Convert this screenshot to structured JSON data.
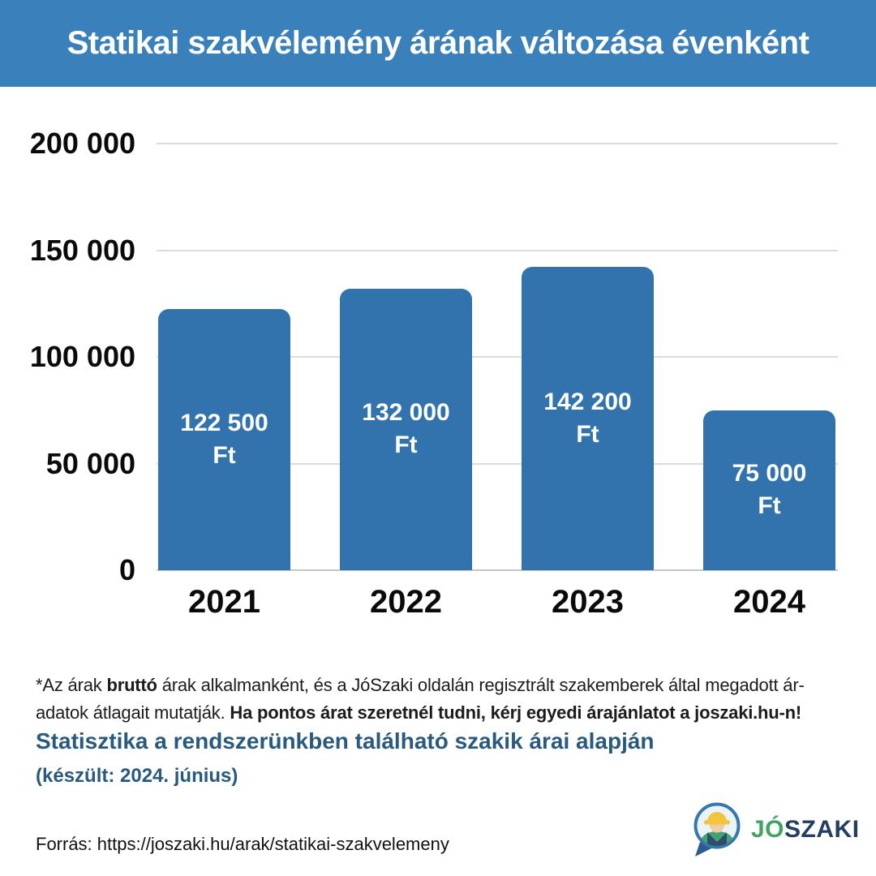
{
  "header": {
    "title": "Statikai szakvélemény árának változása évenként",
    "bg_color": "#3a80bb",
    "text_color": "#ffffff"
  },
  "chart_data": {
    "type": "bar",
    "title": "Statikai szakvélemény árának változása évenként",
    "categories": [
      "2021",
      "2022",
      "2023",
      "2024"
    ],
    "values": [
      122500,
      132000,
      142200,
      75000
    ],
    "value_labels": [
      "122 500",
      "132 000",
      "142 200",
      "75 000"
    ],
    "unit": "Ft",
    "xlabel": "",
    "ylabel": "",
    "ylim": [
      0,
      200000
    ],
    "y_ticks": [
      200000,
      150000,
      100000,
      50000,
      0
    ],
    "y_tick_labels": [
      "200 000",
      "150 000",
      "100 000",
      "50 000",
      "0"
    ],
    "bar_color": "#3273ad",
    "grid": true,
    "legend": "none"
  },
  "footnote": {
    "lines": [
      [
        {
          "text": "*Az árak ",
          "bold": false
        },
        {
          "text": "bruttó",
          "bold": true
        },
        {
          "text": " árak alkalmanként, és a JóSzaki oldalán regisztrált szakemberek által megadott ár-",
          "bold": false
        }
      ],
      [
        {
          "text": "adatok átlagait mutatják. ",
          "bold": false
        },
        {
          "text": "Ha pontos árat szeretnél tudni, kérj egyedi árajánlatot a joszaki.hu-n!",
          "bold": true
        }
      ]
    ]
  },
  "subtitle": {
    "text": "Statisztika a rendszerünkben található szakik árai alapján",
    "date": "(készült: 2024. június)",
    "color": "#28597e"
  },
  "source": {
    "text": "Forrás: https://joszaki.hu/arak/statikai-szakvelemeny"
  },
  "logo": {
    "jo": "JÓ",
    "szaki": "SZAKI",
    "green": "#3fa463",
    "navy": "#223e63",
    "circle_stroke": "#3577ae",
    "circle_fill": "#eaf3fa",
    "tail": "#2b5c8c",
    "helmet": "#f2c53d",
    "skin": "#f3cda2",
    "shirt": "#44a273",
    "straps": "#2e4d6b"
  }
}
